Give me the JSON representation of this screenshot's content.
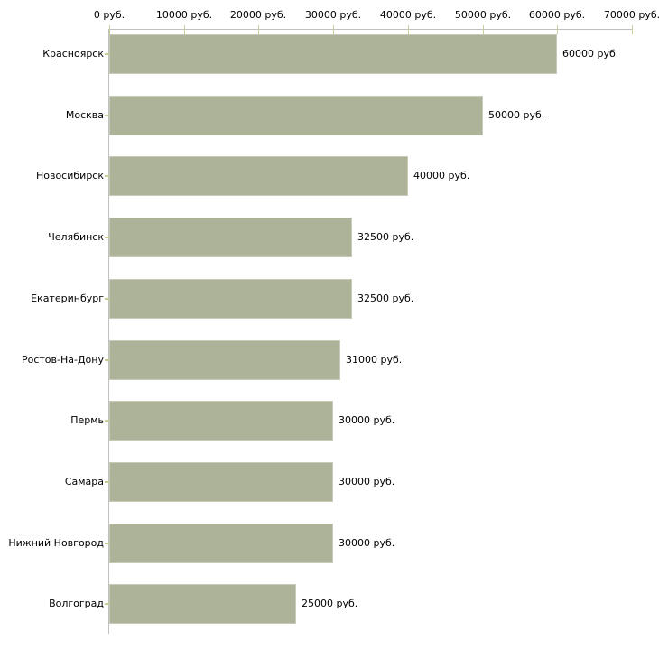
{
  "chart_data": {
    "type": "bar",
    "orientation": "horizontal",
    "title": "",
    "categories": [
      "Красноярск",
      "Москва",
      "Новосибирск",
      "Челябинск",
      "Екатеринбург",
      "Ростов-На-Дону",
      "Пермь",
      "Самара",
      "Нижний Новгород",
      "Волгоград"
    ],
    "values": [
      60000,
      50000,
      40000,
      32500,
      32500,
      31000,
      30000,
      30000,
      30000,
      25000
    ],
    "value_labels": [
      "60000 руб.",
      "50000 руб.",
      "40000 руб.",
      "32500 руб.",
      "32500 руб.",
      "31000 руб.",
      "30000 руб.",
      "30000 руб.",
      "30000 руб.",
      "25000 руб."
    ],
    "x_axis": {
      "position": "top",
      "unit": "руб.",
      "min": 0,
      "max": 70000,
      "tick_values": [
        0,
        10000,
        20000,
        30000,
        40000,
        50000,
        60000,
        70000
      ],
      "tick_labels": [
        "0 руб.",
        "10000 руб.",
        "20000 руб.",
        "30000 руб.",
        "40000 руб.",
        "50000 руб.",
        "60000 руб.",
        "70000 руб."
      ]
    },
    "grid": false,
    "legend": false,
    "colors": {
      "bar_fill": "#adb399",
      "bar_border": "#c6cab8",
      "axis_line": "#c0c0c0",
      "tick_mark": "#cccc99",
      "label_text": "#000000",
      "background": "#ffffff"
    }
  }
}
